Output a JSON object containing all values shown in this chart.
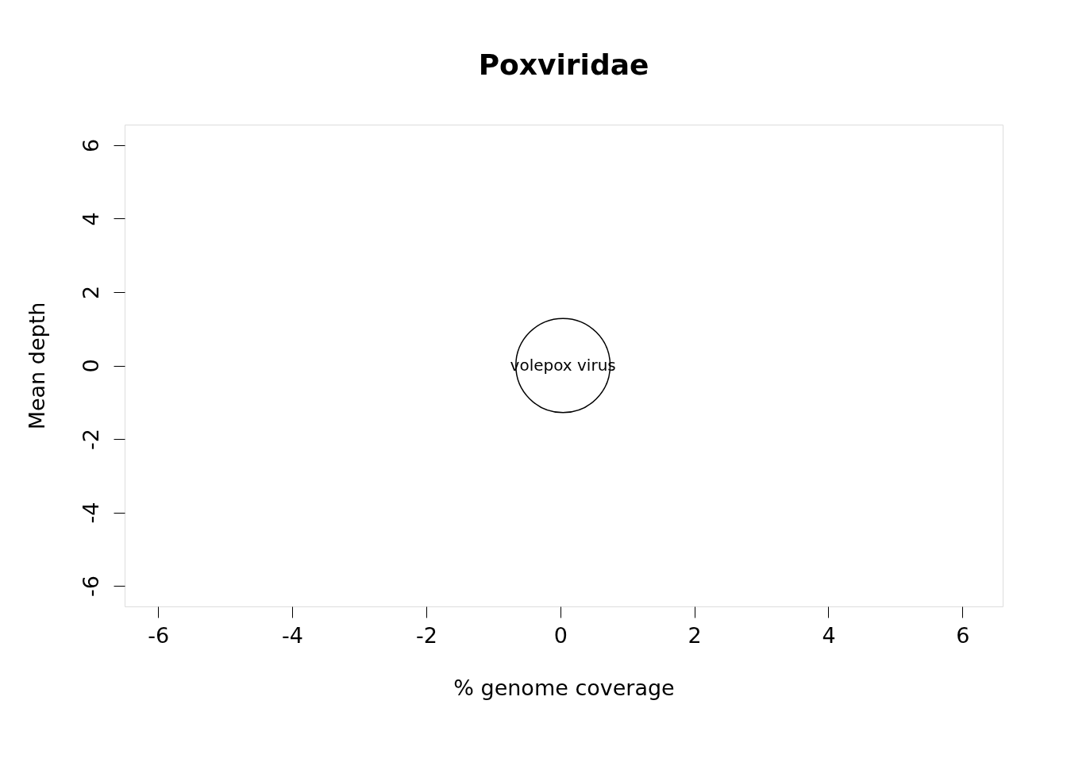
{
  "chart_data": {
    "type": "bubble",
    "title": "Poxviridae",
    "xlabel": "% genome coverage",
    "ylabel": "Mean depth",
    "x": [
      0.04
    ],
    "values": [
      0
    ],
    "sizes": [
      1
    ],
    "color": "#000000",
    "marker": "circle",
    "annotations": [
      {
        "text": "volepox virus",
        "x": 0.04,
        "y": 0
      }
    ],
    "xlim": [
      -6.5,
      6.6
    ],
    "ylim": [
      -6.56,
      6.56
    ],
    "xticks": [
      -6,
      -4,
      -2,
      0,
      2,
      4,
      6
    ],
    "yticks": [
      -6,
      -4,
      -2,
      0,
      2,
      4,
      6
    ],
    "grid": false,
    "legend": false
  }
}
